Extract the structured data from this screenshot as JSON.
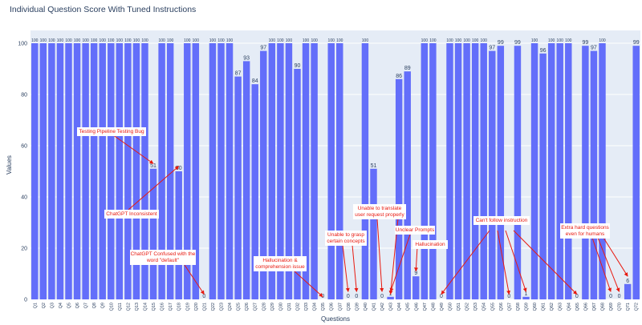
{
  "chart_data": {
    "type": "bar",
    "title": "Individual Question Score With Tuned Instructions",
    "xlabel": "Questions",
    "ylabel": "Values",
    "ylim": [
      0,
      105
    ],
    "yticks": [
      0,
      20,
      40,
      60,
      80,
      100
    ],
    "grid": true,
    "bar_color": "#636efa",
    "annotation_color": "#e8190f",
    "categories": [
      "Q1",
      "Q2",
      "Q3",
      "Q4",
      "Q5",
      "Q6",
      "Q7",
      "Q8",
      "Q9",
      "Q10",
      "Q11",
      "Q12",
      "Q13",
      "Q14",
      "Q15",
      "Q16",
      "Q17",
      "Q18",
      "Q19",
      "Q20",
      "Q21",
      "Q22",
      "Q23",
      "Q24",
      "Q25",
      "Q26",
      "Q27",
      "Q28",
      "Q29",
      "Q30",
      "Q31",
      "Q32",
      "Q33",
      "Q34",
      "Q35",
      "Q36",
      "Q37",
      "Q38",
      "Q39",
      "Q40",
      "Q41",
      "Q42",
      "Q43",
      "Q44",
      "Q45",
      "Q46",
      "Q47",
      "Q48",
      "Q49",
      "Q50",
      "Q51",
      "Q52",
      "Q53",
      "Q54",
      "Q55",
      "Q56",
      "Q57",
      "Q58",
      "Q59",
      "Q60",
      "Q61",
      "Q62",
      "Q63",
      "Q64",
      "Q65",
      "Q66",
      "Q67",
      "Q68",
      "Q69",
      "Q70",
      "Q71",
      "Q72"
    ],
    "values": [
      100,
      100,
      100,
      100,
      100,
      100,
      100,
      100,
      100,
      100,
      100,
      100,
      100,
      100,
      51,
      100,
      100,
      50,
      100,
      100,
      0,
      100,
      100,
      100,
      87,
      93,
      84,
      97,
      100,
      100,
      100,
      90,
      100,
      100,
      0,
      100,
      100,
      0,
      0,
      100,
      51,
      0,
      1,
      86,
      89,
      9,
      100,
      100,
      0,
      100,
      100,
      100,
      100,
      100,
      97,
      99,
      0,
      99,
      1,
      100,
      96,
      100,
      100,
      100,
      0,
      99,
      97,
      100,
      0,
      0,
      6,
      99
    ],
    "annotations": [
      {
        "text": "Testing Pipeline Testing Bug"
      },
      {
        "text": "ChatGPT Inconsistent"
      },
      {
        "text": "ChatGPT Confused with the word \"default\""
      },
      {
        "text": "Hallucination & comprehension issue"
      },
      {
        "text": "Unable to grasp certain concepts"
      },
      {
        "text": "Unable to translate user request properly"
      },
      {
        "text": "Unclear Prompts"
      },
      {
        "text": "Hallucination"
      },
      {
        "text": "Can't follow instruction"
      },
      {
        "text": "Extra hard questions even for humans"
      }
    ]
  }
}
